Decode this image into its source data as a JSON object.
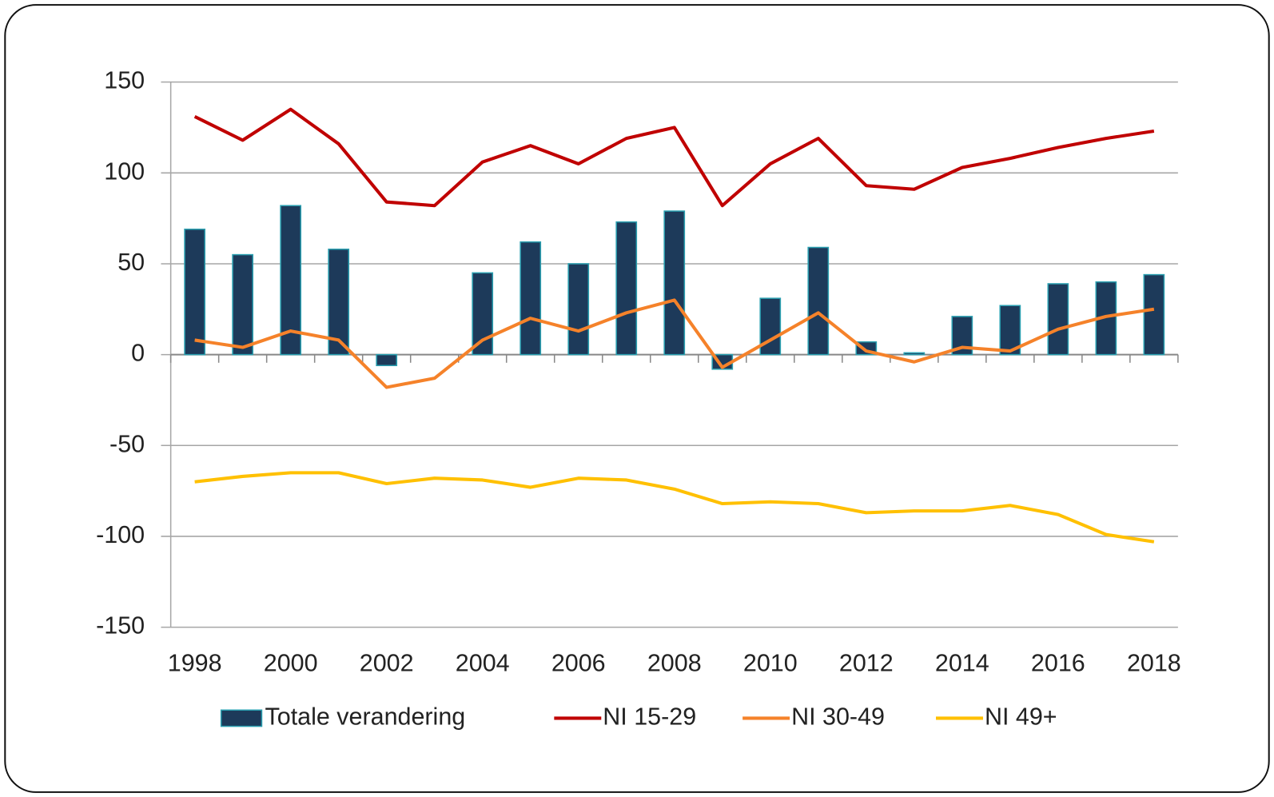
{
  "chart_data": {
    "type": "combo",
    "categories": [
      "1998",
      null,
      "2000",
      null,
      "2002",
      null,
      "2004",
      null,
      "2006",
      null,
      "2008",
      null,
      "2010",
      null,
      "2012",
      null,
      "2014",
      null,
      "2016",
      null,
      "2018"
    ],
    "series": [
      {
        "name": "Totale verandering",
        "type": "bar",
        "color": "#1d3a5a",
        "edge": "#2a9fb0",
        "values": [
          69,
          55,
          82,
          58,
          -6,
          0,
          45,
          62,
          50,
          73,
          79,
          -8,
          31,
          59,
          7,
          1,
          21,
          27,
          39,
          40,
          44
        ]
      },
      {
        "name": "NI 15-29",
        "type": "line",
        "color": "#c00000",
        "values": [
          131,
          118,
          135,
          116,
          84,
          82,
          106,
          115,
          105,
          119,
          125,
          82,
          105,
          119,
          93,
          91,
          103,
          108,
          114,
          119,
          123
        ]
      },
      {
        "name": "NI 30-49",
        "type": "line",
        "color": "#f5822a",
        "values": [
          8,
          4,
          13,
          8,
          -18,
          -13,
          8,
          20,
          13,
          23,
          30,
          -7,
          8,
          23,
          2,
          -4,
          4,
          2,
          14,
          21,
          25
        ]
      },
      {
        "name": "NI 49+",
        "type": "line",
        "color": "#ffc000",
        "values": [
          -70,
          -67,
          -65,
          -65,
          -71,
          -68,
          -69,
          -73,
          -68,
          -69,
          -74,
          -82,
          -81,
          -82,
          -87,
          -86,
          -86,
          -83,
          -88,
          -99,
          -103
        ]
      }
    ],
    "ylim": [
      -150,
      150
    ],
    "yticks": [
      -150,
      -100,
      -50,
      0,
      50,
      100,
      150
    ],
    "grid": true,
    "legend": "bottom"
  }
}
